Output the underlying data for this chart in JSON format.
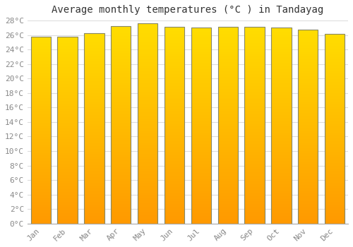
{
  "title": "Average monthly temperatures (°C ) in Tandayag",
  "months": [
    "Jan",
    "Feb",
    "Mar",
    "Apr",
    "May",
    "Jun",
    "Jul",
    "Aug",
    "Sep",
    "Oct",
    "Nov",
    "Dec"
  ],
  "values": [
    25.8,
    25.8,
    26.3,
    27.2,
    27.6,
    27.1,
    27.0,
    27.1,
    27.1,
    27.0,
    26.7,
    26.2
  ],
  "bar_color_top": "#FFDD44",
  "bar_color_bottom": "#FF9900",
  "bar_edge_color": "#888866",
  "ylim": [
    0,
    28
  ],
  "ytick_step": 2,
  "background_color": "#FFFFFF",
  "plot_bg_color": "#FFFFFF",
  "grid_color": "#DDDDDD",
  "title_fontsize": 10,
  "tick_fontsize": 8,
  "font_family": "monospace"
}
